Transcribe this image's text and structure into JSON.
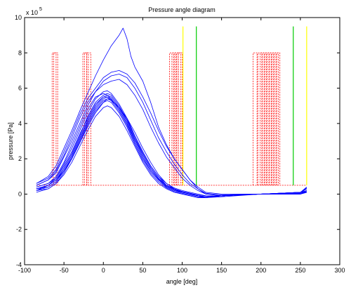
{
  "chart_data": {
    "type": "line",
    "title": "Pressure angle diagram",
    "xlabel": "angle [deg]",
    "ylabel": "pressure [Pa]",
    "y_scale_label": "x 10",
    "y_scale_exponent": "5",
    "xlim": [
      -100,
      300
    ],
    "ylim": [
      -4,
      10
    ],
    "x_ticks": [
      "-100",
      "-50",
      "0",
      "50",
      "100",
      "150",
      "200",
      "250",
      "300"
    ],
    "y_ticks": [
      "-4",
      "-2",
      "0",
      "2",
      "4",
      "6",
      "8",
      "10"
    ],
    "grid": false,
    "colors": {
      "pressure": "#0000ff",
      "valve": "#ff0000",
      "marker_green": "#00cc00",
      "marker_yellow": "#ffff00"
    },
    "pressure_curves": [
      {
        "x": [
          -85,
          -70,
          -60,
          -50,
          -40,
          -30,
          -20,
          -10,
          0,
          5,
          10,
          20,
          30,
          40,
          50,
          60,
          70,
          80,
          90,
          100,
          110,
          120,
          130,
          150,
          200,
          250,
          258
        ],
        "y": [
          0.3,
          0.5,
          0.8,
          1.5,
          2.3,
          3.3,
          4.4,
          5.2,
          5.6,
          5.7,
          5.6,
          5.0,
          4.2,
          3.2,
          2.3,
          1.5,
          0.9,
          0.5,
          0.3,
          0.15,
          0.05,
          -0.1,
          -0.15,
          -0.1,
          0.0,
          0.05,
          0.1
        ]
      },
      {
        "x": [
          -85,
          -70,
          -60,
          -50,
          -40,
          -30,
          -20,
          -10,
          0,
          5,
          10,
          20,
          30,
          40,
          50,
          60,
          70,
          80,
          90,
          100,
          110,
          120,
          130,
          150,
          200,
          250,
          258
        ],
        "y": [
          0.2,
          0.4,
          0.7,
          1.3,
          2.1,
          3.1,
          4.1,
          4.9,
          5.4,
          5.5,
          5.4,
          4.8,
          4.0,
          3.0,
          2.1,
          1.3,
          0.8,
          0.4,
          0.2,
          0.1,
          0.0,
          -0.1,
          -0.2,
          -0.1,
          0.0,
          0.1,
          0.2
        ]
      },
      {
        "x": [
          -85,
          -70,
          -60,
          -50,
          -40,
          -30,
          -20,
          -10,
          0,
          5,
          10,
          20,
          30,
          40,
          50,
          60,
          70,
          80,
          90,
          100,
          110,
          120,
          130,
          150,
          200,
          250,
          258
        ],
        "y": [
          0.1,
          0.3,
          0.6,
          1.2,
          2.0,
          2.9,
          3.9,
          4.7,
          5.2,
          5.3,
          5.2,
          4.6,
          3.8,
          2.8,
          1.9,
          1.2,
          0.7,
          0.35,
          0.15,
          0.0,
          -0.1,
          -0.2,
          -0.2,
          -0.1,
          0.0,
          0.0,
          0.1
        ]
      },
      {
        "x": [
          -85,
          -70,
          -60,
          -50,
          -40,
          -30,
          -20,
          -10,
          0,
          5,
          10,
          20,
          30,
          40,
          50,
          60,
          70,
          80,
          90,
          100,
          110,
          120,
          130,
          150,
          200,
          250,
          258
        ],
        "y": [
          0.4,
          0.6,
          0.9,
          1.7,
          2.6,
          3.6,
          4.6,
          5.4,
          5.8,
          5.85,
          5.7,
          5.1,
          4.3,
          3.3,
          2.4,
          1.6,
          1.0,
          0.6,
          0.35,
          0.2,
          0.1,
          0.0,
          -0.1,
          -0.1,
          0.0,
          0.05,
          0.2
        ]
      },
      {
        "x": [
          -85,
          -70,
          -60,
          -50,
          -40,
          -30,
          -20,
          -10,
          0,
          5,
          10,
          20,
          30,
          40,
          50,
          60,
          70,
          80,
          90,
          100,
          110,
          120,
          130,
          150,
          200,
          250,
          258
        ],
        "y": [
          0.3,
          0.5,
          0.8,
          1.4,
          2.2,
          3.2,
          4.2,
          5.0,
          5.5,
          5.6,
          5.5,
          4.9,
          4.1,
          3.1,
          2.2,
          1.4,
          0.85,
          0.45,
          0.25,
          0.1,
          0.0,
          -0.1,
          -0.15,
          -0.1,
          0.0,
          0.05,
          0.15
        ]
      },
      {
        "x": [
          -85,
          -70,
          -60,
          -50,
          -40,
          -30,
          -20,
          -10,
          0,
          5,
          10,
          20,
          30,
          40,
          50,
          60,
          70,
          80,
          90,
          100,
          110,
          120,
          130,
          150,
          200,
          250,
          258
        ],
        "y": [
          0.2,
          0.5,
          0.9,
          1.6,
          2.4,
          3.4,
          4.3,
          5.1,
          5.5,
          5.5,
          5.3,
          4.7,
          3.9,
          2.9,
          2.0,
          1.3,
          0.8,
          0.4,
          0.2,
          0.05,
          -0.05,
          -0.15,
          -0.2,
          -0.1,
          0.0,
          0.0,
          0.1
        ]
      },
      {
        "x": [
          -85,
          -70,
          -60,
          -50,
          -40,
          -30,
          -20,
          -10,
          0,
          5,
          10,
          20,
          30,
          40,
          50,
          60,
          70,
          80,
          90,
          100,
          110,
          120,
          130,
          150,
          200,
          250,
          258
        ],
        "y": [
          0.3,
          0.4,
          0.7,
          1.3,
          2.0,
          3.0,
          4.0,
          4.8,
          5.3,
          5.4,
          5.35,
          4.9,
          4.3,
          3.5,
          2.6,
          1.8,
          1.1,
          0.6,
          0.3,
          0.1,
          0.0,
          -0.1,
          -0.15,
          -0.1,
          0.0,
          0.05,
          0.15
        ]
      },
      {
        "x": [
          -85,
          -70,
          -60,
          -50,
          -40,
          -30,
          -20,
          -10,
          0,
          5,
          10,
          20,
          30,
          40,
          50,
          60,
          70,
          80,
          90,
          100,
          110,
          120,
          130,
          150,
          200,
          250,
          258
        ],
        "y": [
          0.2,
          0.3,
          0.6,
          1.1,
          1.8,
          2.7,
          3.6,
          4.4,
          4.9,
          5.0,
          4.9,
          4.4,
          3.6,
          2.7,
          1.8,
          1.1,
          0.6,
          0.3,
          0.1,
          0.0,
          -0.1,
          -0.2,
          -0.2,
          -0.1,
          0.0,
          0.0,
          0.1
        ]
      },
      {
        "x": [
          -85,
          -70,
          -60,
          -50,
          -40,
          -30,
          -20,
          -10,
          0,
          5,
          10,
          20,
          30,
          40,
          50,
          60,
          70,
          80,
          90,
          100,
          110,
          120,
          130,
          150,
          200,
          250,
          258
        ],
        "y": [
          0.4,
          0.6,
          1.0,
          1.8,
          2.8,
          3.8,
          4.8,
          5.5,
          5.7,
          5.6,
          5.4,
          4.8,
          4.0,
          3.1,
          2.3,
          1.5,
          0.9,
          0.5,
          0.3,
          0.15,
          0.05,
          -0.05,
          -0.1,
          -0.1,
          0.0,
          0.1,
          0.3
        ]
      },
      {
        "x": [
          -85,
          -70,
          -60,
          -50,
          -40,
          -30,
          -20,
          -10,
          0,
          10,
          20,
          30,
          40,
          50,
          60,
          70,
          80,
          90,
          100,
          110,
          120,
          130,
          150,
          200,
          250,
          258
        ],
        "y": [
          0.5,
          0.8,
          1.3,
          2.2,
          3.2,
          4.3,
          5.2,
          5.8,
          6.2,
          6.4,
          6.5,
          6.2,
          5.6,
          4.8,
          3.8,
          2.9,
          2.1,
          1.5,
          0.9,
          0.5,
          0.2,
          0.0,
          -0.1,
          0.0,
          0.1,
          0.3
        ]
      },
      {
        "x": [
          -85,
          -70,
          -60,
          -50,
          -40,
          -30,
          -20,
          -10,
          0,
          10,
          20,
          30,
          40,
          50,
          60,
          70,
          80,
          90,
          100,
          110,
          120,
          130,
          150,
          200,
          250,
          258
        ],
        "y": [
          0.6,
          0.9,
          1.4,
          2.4,
          3.4,
          4.5,
          5.4,
          6.0,
          6.6,
          6.9,
          7.0,
          6.8,
          6.3,
          5.5,
          4.6,
          3.6,
          2.7,
          2.0,
          1.4,
          0.8,
          0.4,
          0.1,
          0.0,
          0.0,
          0.1,
          0.35
        ]
      },
      {
        "x": [
          -85,
          -70,
          -60,
          -50,
          -40,
          -30,
          -20,
          -10,
          0,
          10,
          20,
          30,
          40,
          50,
          60,
          70,
          80,
          90,
          100,
          110,
          120,
          130,
          150,
          200,
          250,
          258
        ],
        "y": [
          0.5,
          0.8,
          1.2,
          2.1,
          3.0,
          4.0,
          5.0,
          5.8,
          6.4,
          6.7,
          6.8,
          6.6,
          6.0,
          5.2,
          4.2,
          3.2,
          2.4,
          1.7,
          1.1,
          0.6,
          0.3,
          0.05,
          -0.05,
          0.0,
          0.1,
          0.3
        ]
      },
      {
        "x": [
          -85,
          -70,
          -60,
          -50,
          -40,
          -30,
          -20,
          -10,
          0,
          10,
          20,
          25,
          30,
          35,
          40,
          50,
          60,
          70,
          80,
          90,
          100,
          110,
          120,
          130,
          150,
          200,
          250,
          258
        ],
        "y": [
          0.6,
          1.0,
          1.6,
          2.6,
          3.6,
          4.7,
          5.7,
          6.7,
          7.6,
          8.4,
          9.0,
          9.4,
          8.8,
          7.8,
          7.2,
          6.4,
          5.2,
          3.8,
          2.8,
          2.0,
          1.4,
          0.8,
          0.3,
          0.0,
          -0.1,
          0.0,
          0.1,
          0.4
        ]
      },
      {
        "x": [
          -85,
          -70,
          -60,
          -50,
          -40,
          -30,
          -20,
          -10,
          0,
          5,
          10,
          20,
          30,
          40,
          50,
          60,
          70,
          80,
          90,
          100,
          110,
          120,
          130,
          150,
          200,
          250,
          258
        ],
        "y": [
          0.3,
          0.5,
          0.8,
          1.3,
          2.0,
          2.9,
          3.8,
          4.6,
          5.2,
          5.4,
          5.3,
          4.9,
          4.2,
          3.3,
          2.4,
          1.6,
          1.0,
          0.5,
          0.25,
          0.1,
          0.0,
          -0.1,
          -0.2,
          -0.15,
          0.0,
          0.05,
          0.2
        ]
      }
    ],
    "valve_baseline": {
      "x": [
        -85,
        258
      ],
      "y": 0.5
    },
    "valve_pulses": [
      [
        -65,
        -60
      ],
      [
        -63,
        -58
      ],
      [
        -26,
        -21
      ],
      [
        -24,
        -19
      ],
      [
        -21,
        -16
      ],
      [
        84,
        89
      ],
      [
        87,
        92
      ],
      [
        90,
        95
      ],
      [
        93,
        98
      ],
      [
        95,
        100
      ],
      [
        190,
        195
      ],
      [
        196,
        201
      ],
      [
        199,
        204
      ],
      [
        202,
        207
      ],
      [
        205,
        210
      ],
      [
        208,
        213
      ],
      [
        211,
        216
      ],
      [
        214,
        219
      ],
      [
        217,
        222
      ],
      [
        220,
        224
      ]
    ],
    "valve_pulse_top": 8,
    "marker_lines": [
      {
        "x": 101,
        "color": "yellow",
        "y_top": 9.5
      },
      {
        "x": 118,
        "color": "green",
        "y_top": 9.5
      },
      {
        "x": 241,
        "color": "green",
        "y_top": 9.5
      },
      {
        "x": 258,
        "color": "yellow",
        "y_top": 9.5
      }
    ]
  }
}
